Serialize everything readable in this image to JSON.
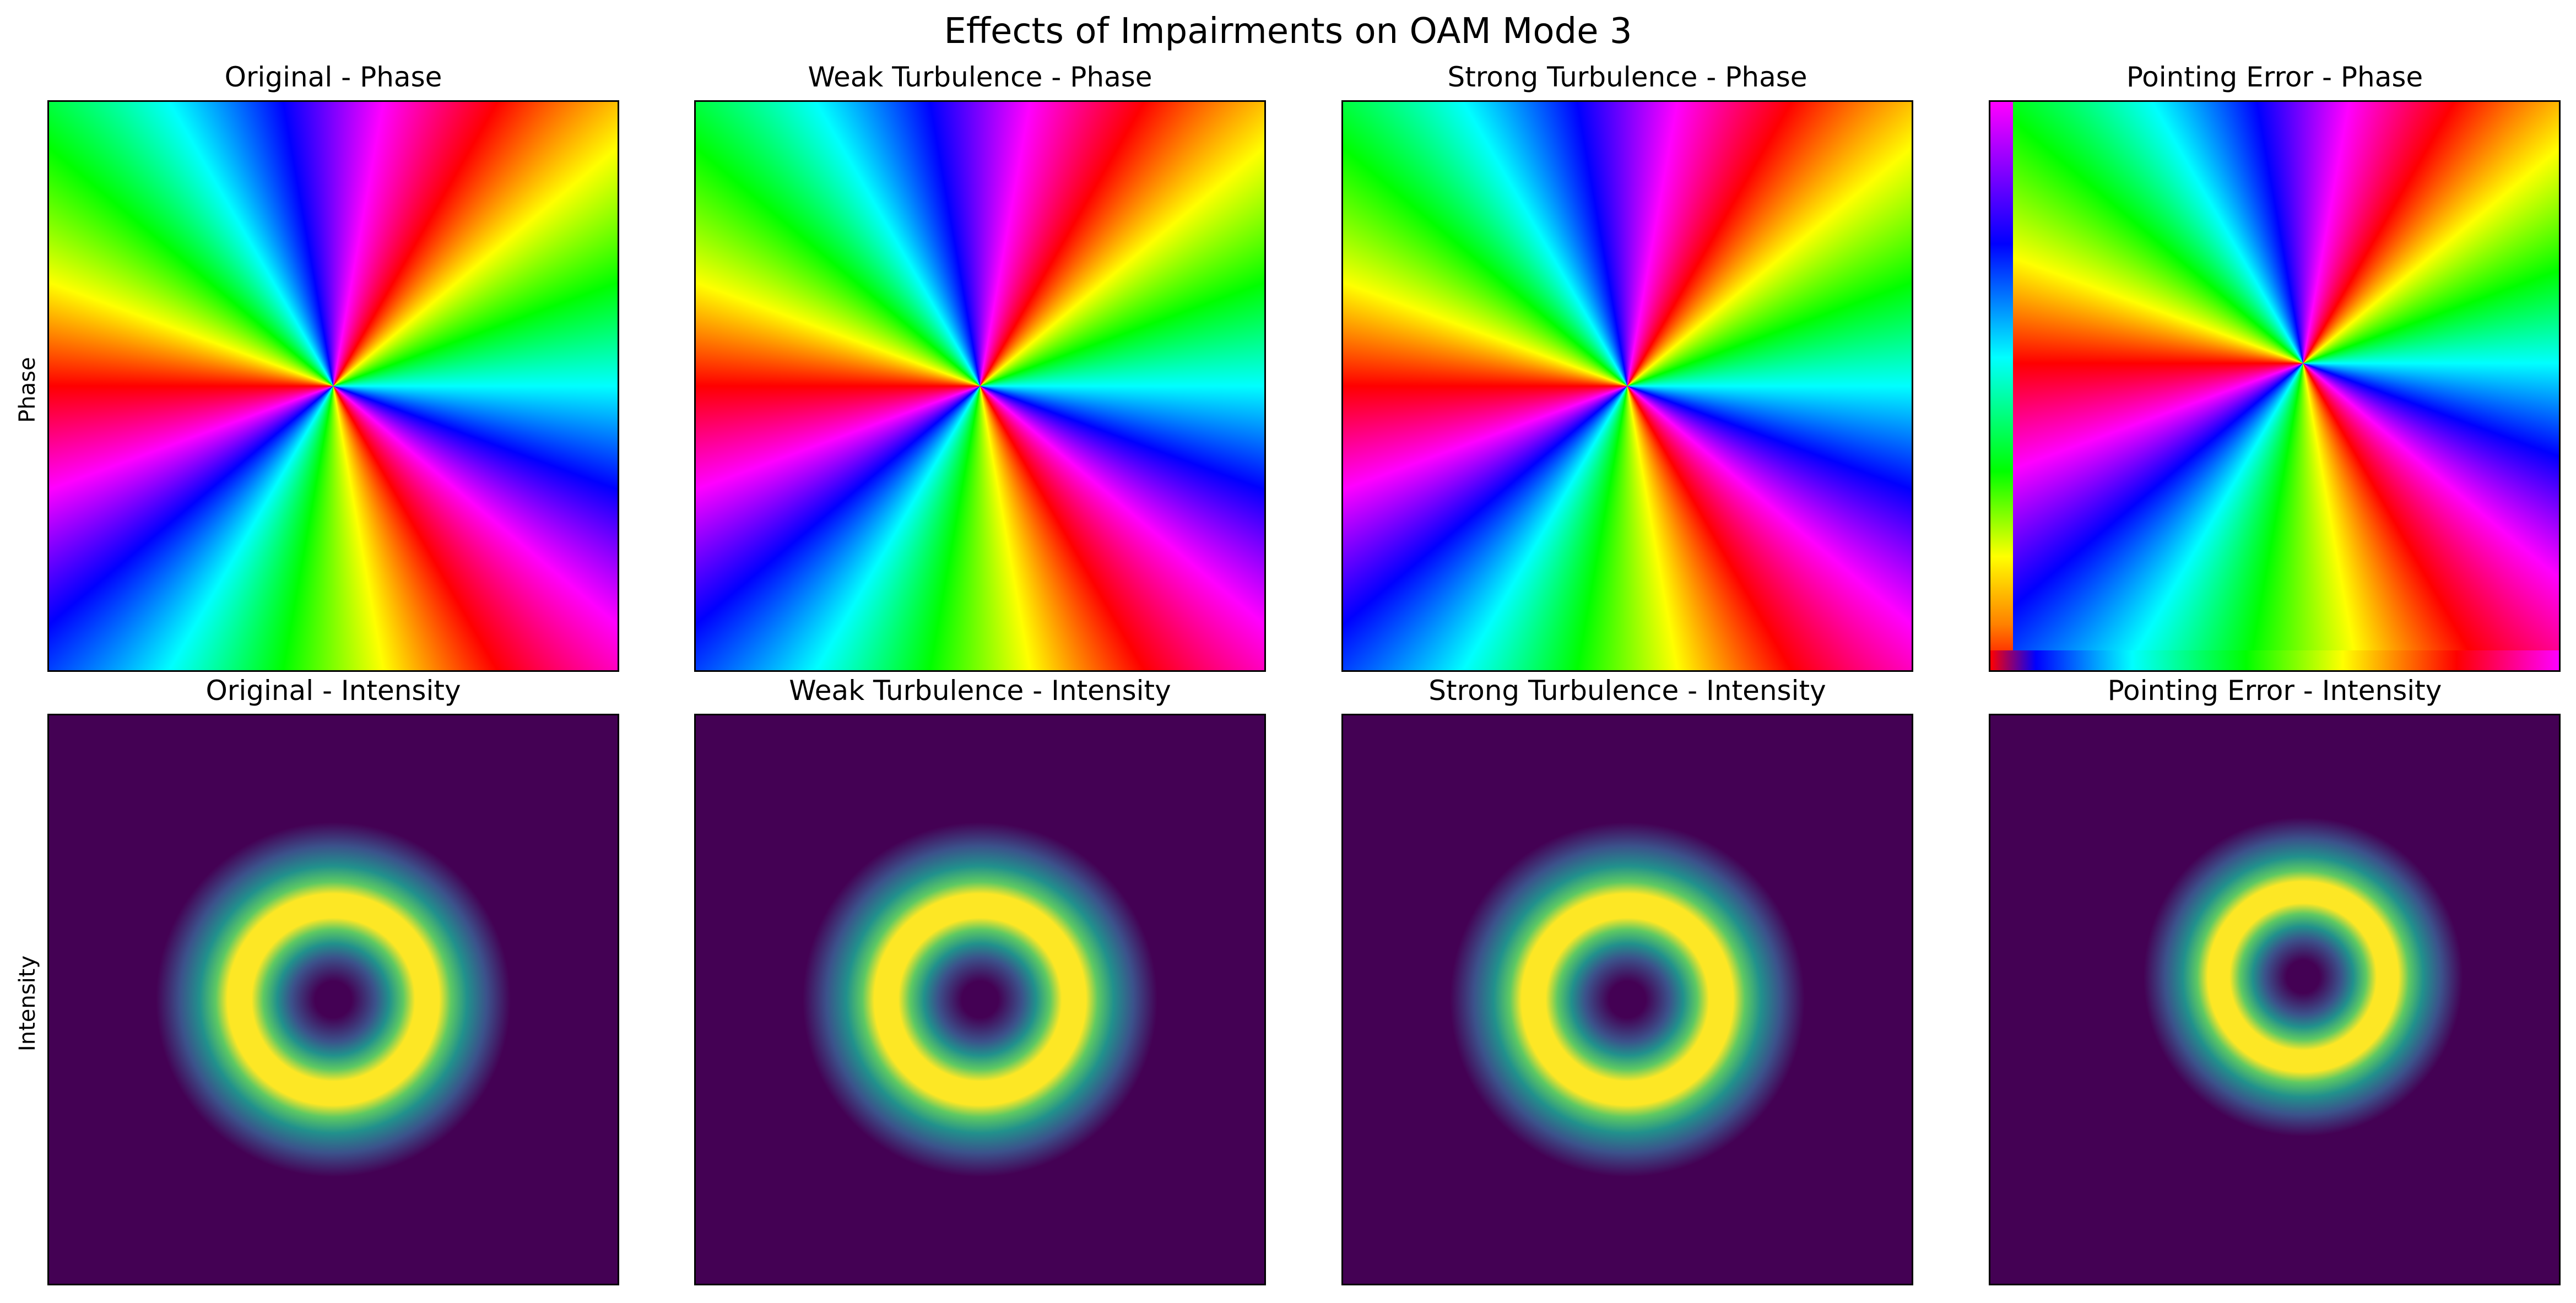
{
  "chart_data": {
    "title": "Effects of Impairments on OAM Mode 3",
    "type": "heatmap",
    "oam_mode": 3,
    "row_labels": [
      "Phase",
      "Intensity"
    ],
    "colormaps": {
      "phase": "hsv",
      "intensity": "viridis"
    },
    "columns": [
      {
        "phase_title": "Original - Phase",
        "intensity_title": "Original - Intensity",
        "ring_radius_fraction": 0.33,
        "ring_width_fraction": 0.14,
        "center_shift": [
          0.0,
          0.0
        ],
        "pointing_error": false
      },
      {
        "phase_title": "Weak Turbulence - Phase",
        "intensity_title": "Weak Turbulence - Intensity",
        "ring_radius_fraction": 0.33,
        "ring_width_fraction": 0.14,
        "center_shift": [
          0.0,
          0.0
        ],
        "pointing_error": false
      },
      {
        "phase_title": "Strong Turbulence - Phase",
        "intensity_title": "Strong Turbulence - Intensity",
        "ring_radius_fraction": 0.33,
        "ring_width_fraction": 0.14,
        "center_shift": [
          0.0,
          0.0
        ],
        "pointing_error": false
      },
      {
        "phase_title": "Pointing Error - Phase",
        "intensity_title": "Pointing Error - Intensity",
        "ring_radius_fraction": 0.33,
        "ring_width_fraction": 0.14,
        "center_shift": [
          0.05,
          -0.04
        ],
        "pointing_error": true
      }
    ]
  }
}
